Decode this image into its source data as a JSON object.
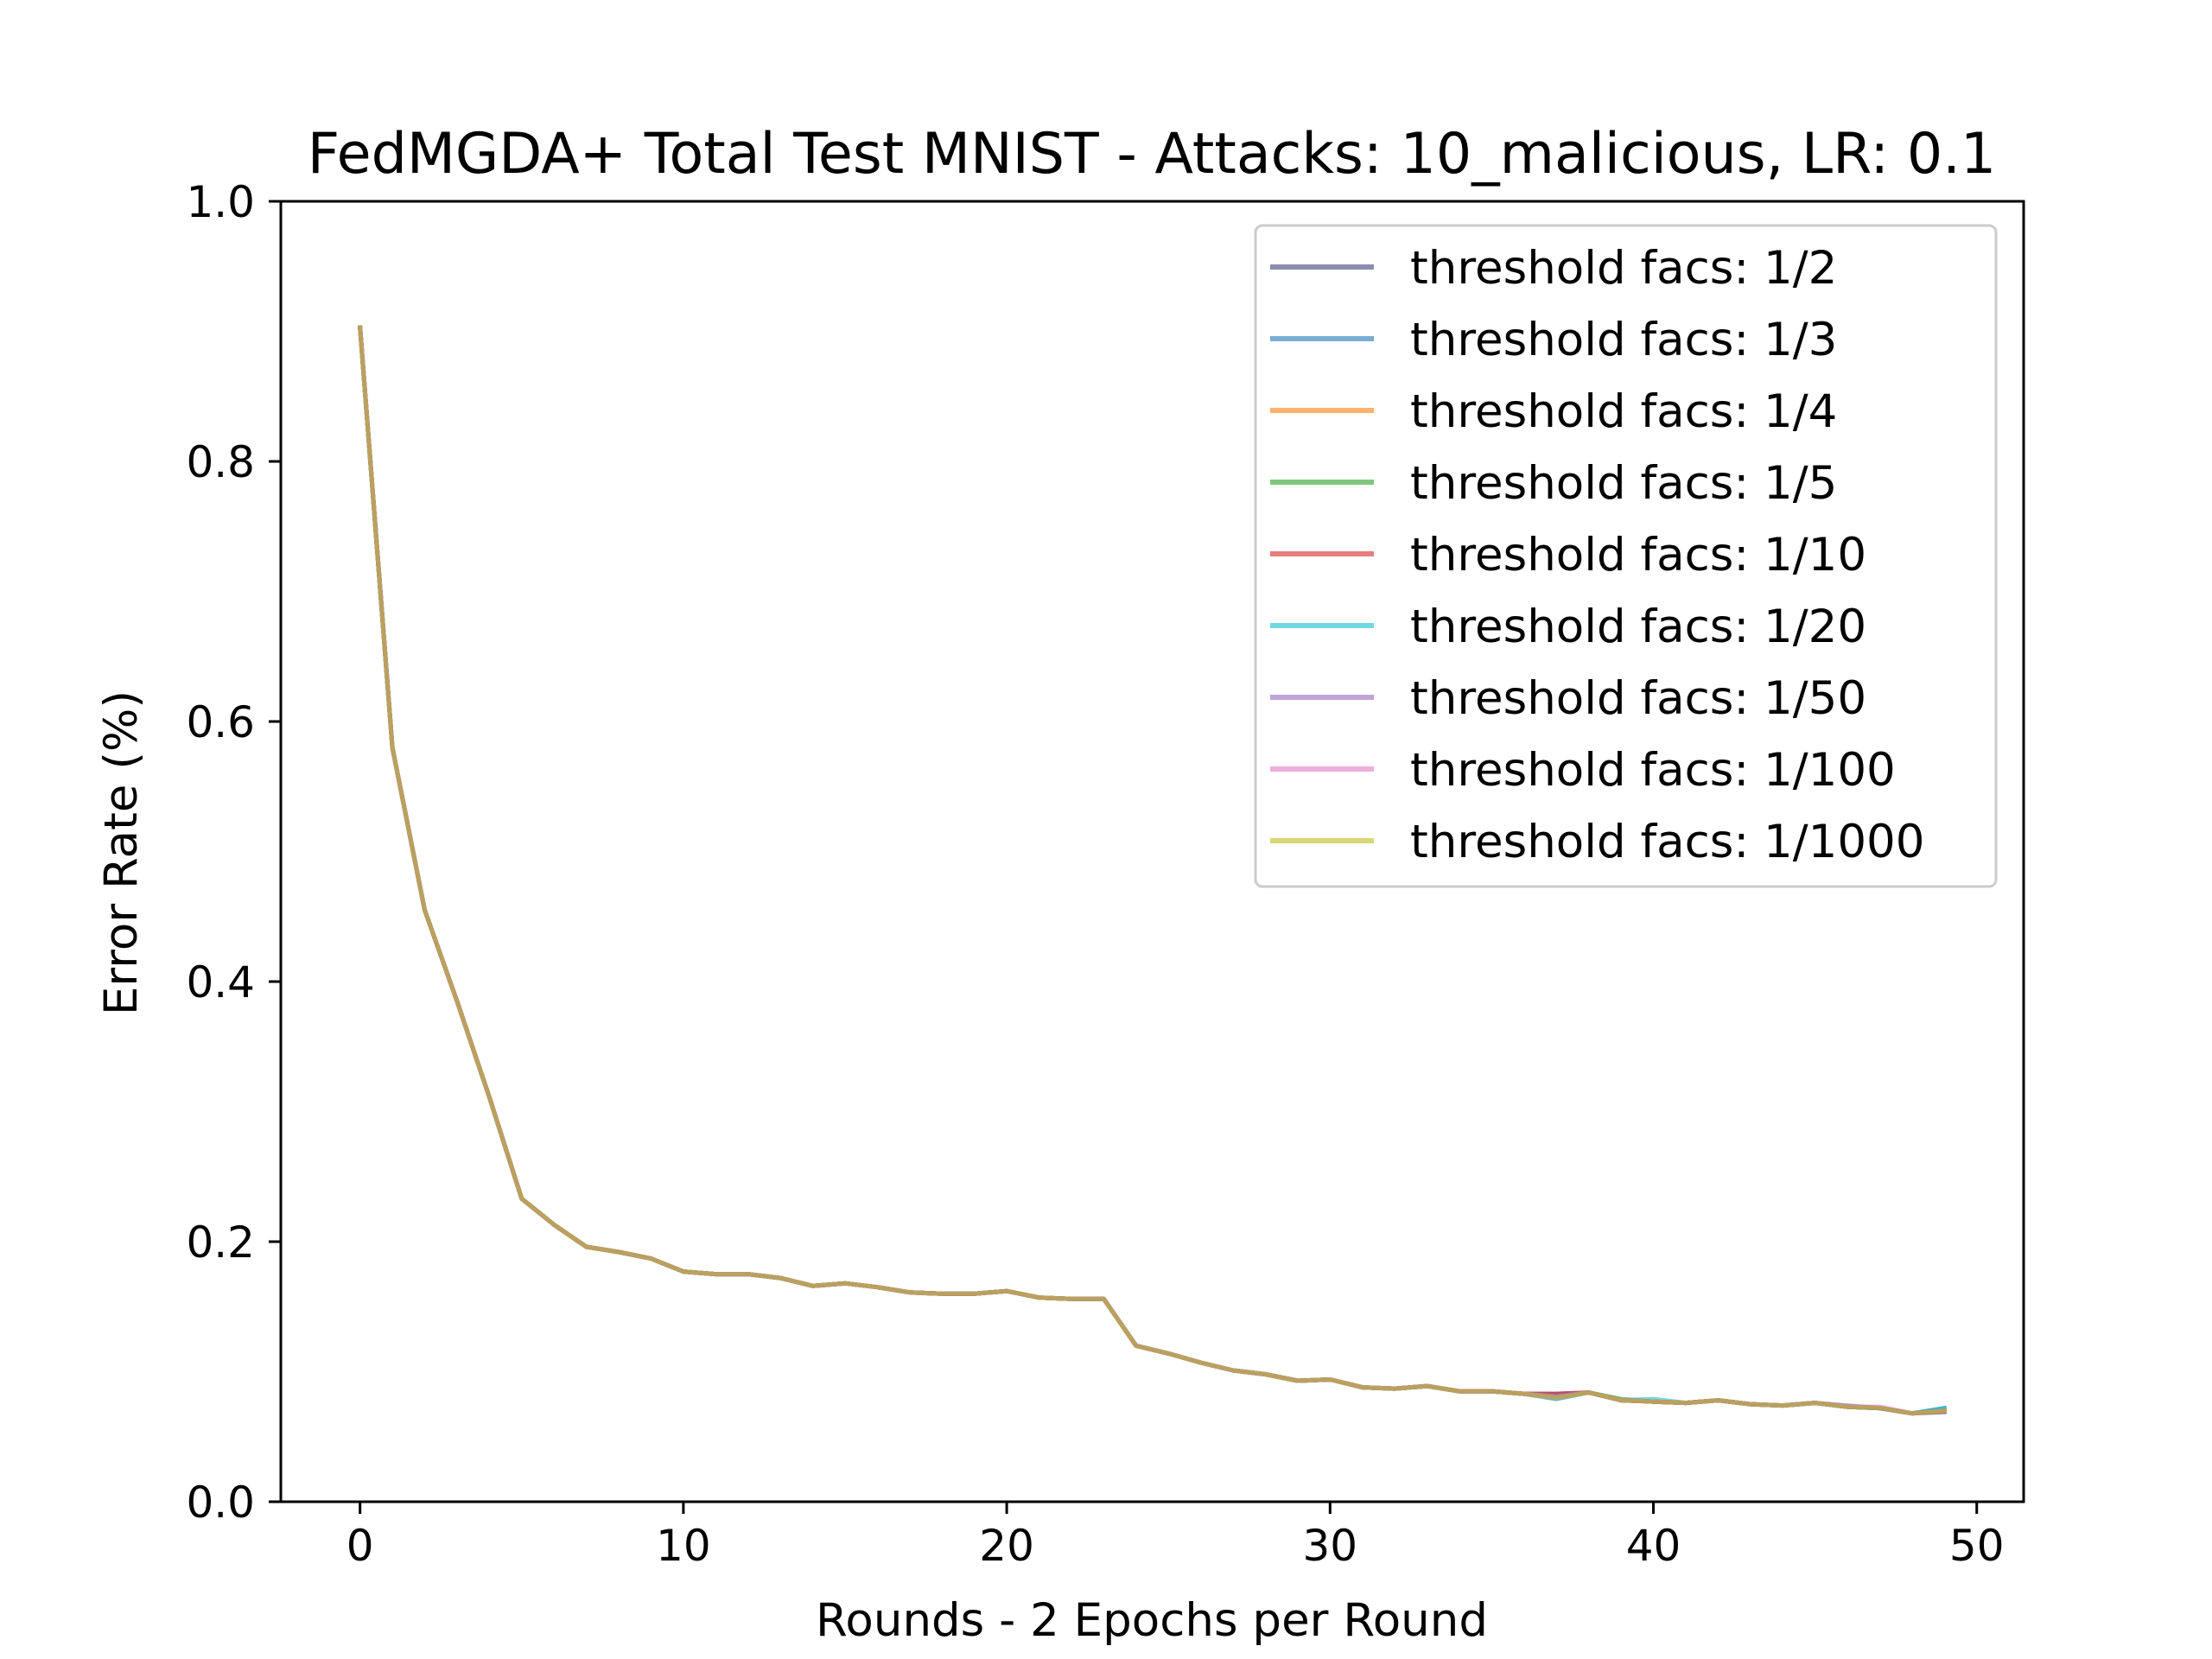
{
  "chart_data": {
    "type": "line",
    "title": "FedMGDA+ Total Test MNIST - Attacks: 10_malicious, LR: 0.1",
    "xlabel": "Rounds - 2 Epochs per Round",
    "ylabel": "Error Rate (%)",
    "xlim": [
      -2.45,
      51.45
    ],
    "ylim": [
      0.0,
      1.0
    ],
    "xticks": [
      0,
      10,
      20,
      30,
      40,
      50
    ],
    "xtick_labels": [
      "0",
      "10",
      "20",
      "30",
      "40",
      "50"
    ],
    "yticks": [
      0.0,
      0.2,
      0.4,
      0.6,
      0.8,
      1.0
    ],
    "ytick_labels": [
      "0.0",
      "0.2",
      "0.4",
      "0.6",
      "0.8",
      "1.0"
    ],
    "grid": false,
    "legend_position": "top-right",
    "x": [
      0,
      1,
      2,
      3,
      4,
      5,
      6,
      7,
      8,
      9,
      10,
      11,
      12,
      13,
      14,
      15,
      16,
      17,
      18,
      19,
      20,
      21,
      22,
      23,
      24,
      25,
      26,
      27,
      28,
      29,
      30,
      31,
      32,
      33,
      34,
      35,
      36,
      37,
      38,
      39,
      40,
      41,
      42,
      43,
      44,
      45,
      46,
      47,
      48,
      49
    ],
    "base_values": [
      0.903,
      0.58,
      0.455,
      0.385,
      0.311,
      0.233,
      0.213,
      0.196,
      0.192,
      0.187,
      0.177,
      0.175,
      0.175,
      0.172,
      0.166,
      0.168,
      0.165,
      0.161,
      0.16,
      0.16,
      0.162,
      0.157,
      0.156,
      0.156,
      0.12,
      0.114,
      0.107,
      0.101,
      0.098,
      0.093,
      0.094,
      0.088,
      0.087,
      0.089,
      0.085,
      0.085,
      0.083,
      0.081,
      0.084,
      0.078,
      0.077,
      0.076,
      0.078,
      0.075,
      0.074,
      0.076,
      0.073,
      0.072,
      0.068,
      0.07
    ],
    "series": [
      {
        "name": "threshold facs: 1/2",
        "color": "#40407a",
        "offsets": {
          "37": 0.002,
          "49": -0.001
        }
      },
      {
        "name": "threshold facs: 1/3",
        "color": "#1f77b4",
        "offsets": {
          "37": -0.002,
          "49": 0.002
        }
      },
      {
        "name": "threshold facs: 1/4",
        "color": "#ff7f0e",
        "offsets": {}
      },
      {
        "name": "threshold facs: 1/5",
        "color": "#2ca02c",
        "offsets": {
          "39": 0.001
        }
      },
      {
        "name": "threshold facs: 1/10",
        "color": "#d62728",
        "offsets": {
          "37": 0.002
        }
      },
      {
        "name": "threshold facs: 1/20",
        "color": "#17becf",
        "offsets": {
          "40": 0.002,
          "49": 0.002
        }
      },
      {
        "name": "threshold facs: 1/50",
        "color": "#9467bd",
        "offsets": {
          "46": 0.001
        }
      },
      {
        "name": "threshold facs: 1/100",
        "color": "#e377c2",
        "offsets": {
          "47": 0.001
        }
      },
      {
        "name": "threshold facs: 1/1000",
        "color": "#bcbd22",
        "offsets": {
          "37": -0.001
        }
      }
    ]
  }
}
